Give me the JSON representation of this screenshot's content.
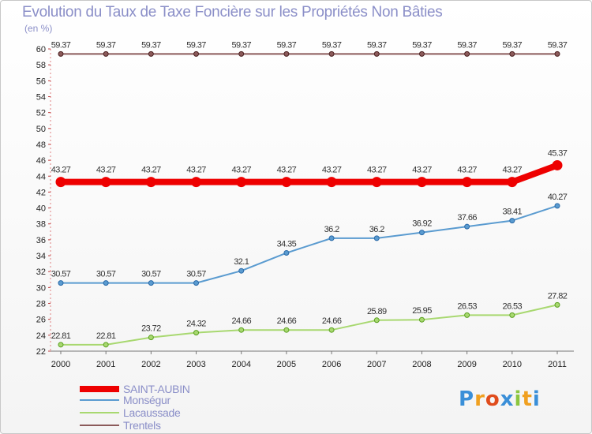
{
  "title": "Evolution du Taux de Taxe Foncière sur les Propriétés Non Bâties",
  "unit_label": "(en %)",
  "brand": {
    "letters": [
      "P",
      "r",
      "o",
      "x",
      "i",
      "t",
      "i"
    ],
    "colors": [
      "#3a8fd8",
      "#f0a020",
      "#e04c1c",
      "#3a8fd8",
      "#8cc63f",
      "#f0a020",
      "#3a8fd8"
    ]
  },
  "chart_data": {
    "type": "line",
    "title": "Evolution du Taux de Taxe Foncière sur les Propriétés Non Bâties",
    "ylabel": "(en %)",
    "ylim": [
      22,
      60
    ],
    "yticks": [
      22,
      24,
      26,
      28,
      30,
      32,
      34,
      36,
      38,
      40,
      42,
      44,
      46,
      48,
      50,
      52,
      54,
      56,
      58,
      60
    ],
    "categories": [
      "2000",
      "2001",
      "2002",
      "2003",
      "2004",
      "2005",
      "2006",
      "2007",
      "2008",
      "2009",
      "2010",
      "2011"
    ],
    "series": [
      {
        "name": "SAINT-AUBIN",
        "color": "#ee0000",
        "width": 8,
        "values": [
          43.27,
          43.27,
          43.27,
          43.27,
          43.27,
          43.27,
          43.27,
          43.27,
          43.27,
          43.27,
          43.27,
          45.37
        ],
        "labels": [
          "43.27",
          "43.27",
          "43.27",
          "43.27",
          "43.27",
          "43.27",
          "43.27",
          "43.27",
          "43.27",
          "43.27",
          "43.27",
          "45.37"
        ]
      },
      {
        "name": "Monségur",
        "color": "#5a9bd0",
        "width": 2,
        "values": [
          30.57,
          30.57,
          30.57,
          30.57,
          32.1,
          34.35,
          36.2,
          36.2,
          36.92,
          37.66,
          38.41,
          40.27
        ],
        "labels": [
          "30.57",
          "30.57",
          "30.57",
          "30.57",
          "32.1",
          "34.35",
          "36.2",
          "36.2",
          "36.92",
          "37.66",
          "38.41",
          "40.27"
        ]
      },
      {
        "name": "Lacaussade",
        "color": "#a8d870",
        "width": 2,
        "values": [
          22.81,
          22.81,
          23.72,
          24.32,
          24.66,
          24.66,
          24.66,
          25.89,
          25.95,
          26.53,
          26.53,
          27.82
        ],
        "labels": [
          "22.81",
          "22.81",
          "23.72",
          "24.32",
          "24.66",
          "24.66",
          "24.66",
          "25.89",
          "25.95",
          "26.53",
          "26.53",
          "27.82"
        ]
      },
      {
        "name": "Trentels",
        "color": "#8b5a5a",
        "width": 2,
        "values": [
          59.37,
          59.37,
          59.37,
          59.37,
          59.37,
          59.37,
          59.37,
          59.37,
          59.37,
          59.37,
          59.37,
          59.37
        ],
        "labels": [
          "59.37",
          "59.37",
          "59.37",
          "59.37",
          "59.37",
          "59.37",
          "59.37",
          "59.37",
          "59.37",
          "59.37",
          "59.37",
          "59.37"
        ]
      }
    ],
    "legend": [
      "SAINT-AUBIN",
      "Monségur",
      "Lacaussade",
      "Trentels"
    ],
    "grid": false
  }
}
